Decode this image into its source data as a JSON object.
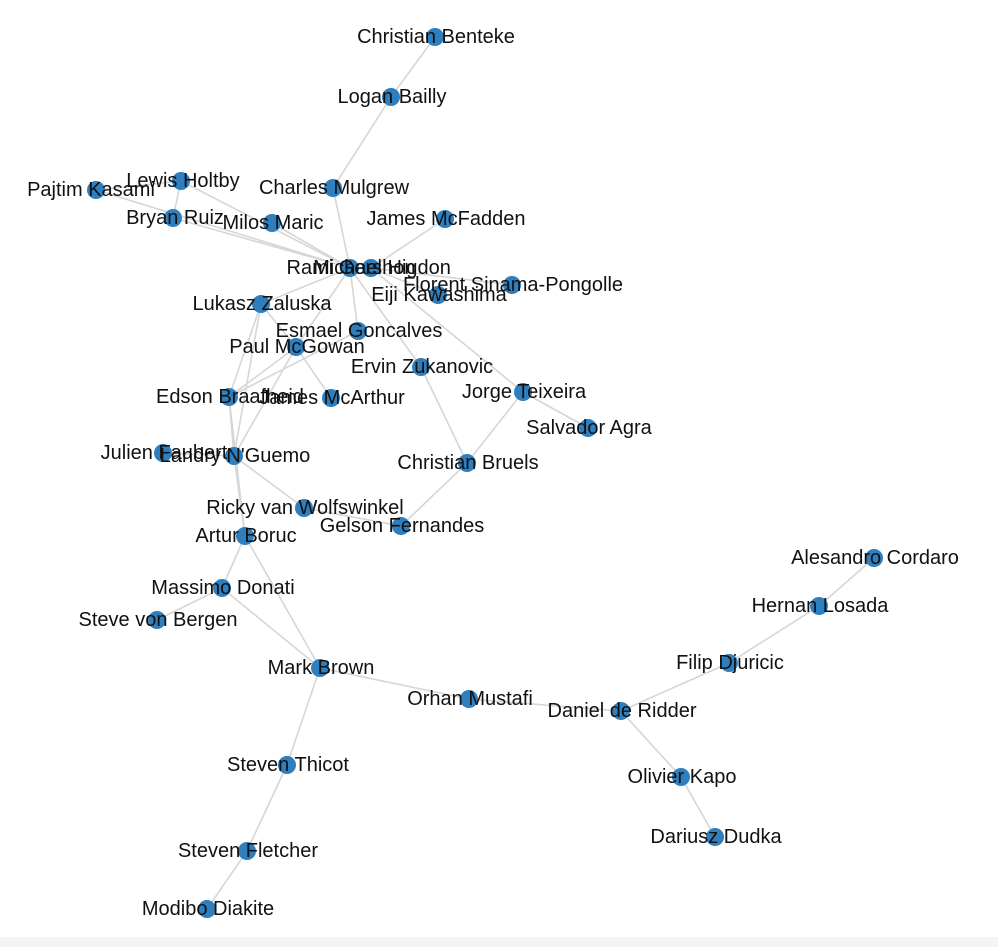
{
  "graph": {
    "node_color": "#2f7fbf",
    "edge_color": "#d6d6d6",
    "nodes": [
      {
        "id": "christian_benteke",
        "label": "Christian Benteke"
      },
      {
        "id": "logan_bailly",
        "label": "Logan Bailly"
      },
      {
        "id": "charles_mulgrew",
        "label": "Charles Mulgrew"
      },
      {
        "id": "lewis_holtby",
        "label": "Lewis Holtby"
      },
      {
        "id": "pajtim_kasami",
        "label": "Pajtim Kasami"
      },
      {
        "id": "bryan_ruiz",
        "label": "Bryan Ruiz"
      },
      {
        "id": "milos_maric",
        "label": "Milos Maric"
      },
      {
        "id": "james_mcfadden",
        "label": "James McFadden"
      },
      {
        "id": "rami_gershon",
        "label": "Rami Gershon"
      },
      {
        "id": "michael_higdon",
        "label": "Michael Higdon"
      },
      {
        "id": "florent_sinama_pongolle",
        "label": "Florent Sinama-Pongolle"
      },
      {
        "id": "eiji_kawashima",
        "label": "Eiji Kawashima"
      },
      {
        "id": "lukasz_zaluska",
        "label": "Lukasz Zaluska"
      },
      {
        "id": "esmael_goncalves",
        "label": "Esmael Goncalves"
      },
      {
        "id": "paul_mcgowan",
        "label": "Paul McGowan"
      },
      {
        "id": "ervin_zukanovic",
        "label": "Ervin Zukanovic"
      },
      {
        "id": "jorge_teixeira",
        "label": "Jorge Teixeira"
      },
      {
        "id": "salvador_agra",
        "label": "Salvador Agra"
      },
      {
        "id": "edson_braafheid",
        "label": "Edson Braafheid"
      },
      {
        "id": "james_mcarthur",
        "label": "James McArthur"
      },
      {
        "id": "julien_faubert",
        "label": "Julien Faubert"
      },
      {
        "id": "landry_nguemo",
        "label": "Landry N'Guemo"
      },
      {
        "id": "christian_bruels",
        "label": "Christian Bruels"
      },
      {
        "id": "ricky_van_wolfswinkel",
        "label": "Ricky van Wolfswinkel"
      },
      {
        "id": "gelson_fernandes",
        "label": "Gelson Fernandes"
      },
      {
        "id": "artur_boruc",
        "label": "Artur Boruc"
      },
      {
        "id": "massimo_donati",
        "label": "Massimo Donati"
      },
      {
        "id": "steve_von_bergen",
        "label": "Steve von Bergen"
      },
      {
        "id": "mark_brown",
        "label": "Mark Brown"
      },
      {
        "id": "orhan_mustafi",
        "label": "Orhan Mustafi"
      },
      {
        "id": "steven_thicot",
        "label": "Steven Thicot"
      },
      {
        "id": "steven_fletcher",
        "label": "Steven Fletcher"
      },
      {
        "id": "modibo_diakite",
        "label": "Modibo Diakite"
      },
      {
        "id": "alesandro_cordaro",
        "label": "Alesandro Cordaro"
      },
      {
        "id": "hernan_losada",
        "label": "Hernan Losada"
      },
      {
        "id": "filip_djuricic",
        "label": "Filip Djuricic"
      },
      {
        "id": "daniel_de_ridder",
        "label": "Daniel de Ridder"
      },
      {
        "id": "olivier_kapo",
        "label": "Olivier Kapo"
      },
      {
        "id": "dariusz_dudka",
        "label": "Dariusz Dudka"
      }
    ],
    "edges": [
      [
        "christian_benteke",
        "logan_bailly"
      ],
      [
        "logan_bailly",
        "charles_mulgrew"
      ],
      [
        "charles_mulgrew",
        "rami_gershon"
      ],
      [
        "lewis_holtby",
        "pajtim_kasami"
      ],
      [
        "lewis_holtby",
        "rami_gershon"
      ],
      [
        "lewis_holtby",
        "bryan_ruiz"
      ],
      [
        "pajtim_kasami",
        "rami_gershon"
      ],
      [
        "bryan_ruiz",
        "rami_gershon"
      ],
      [
        "milos_maric",
        "rami_gershon"
      ],
      [
        "james_mcfadden",
        "michael_higdon"
      ],
      [
        "rami_gershon",
        "michael_higdon"
      ],
      [
        "michael_higdon",
        "florent_sinama_pongolle"
      ],
      [
        "michael_higdon",
        "eiji_kawashima"
      ],
      [
        "rami_gershon",
        "lukasz_zaluska"
      ],
      [
        "rami_gershon",
        "esmael_goncalves"
      ],
      [
        "rami_gershon",
        "ervin_zukanovic"
      ],
      [
        "rami_gershon",
        "paul_mcgowan"
      ],
      [
        "michael_higdon",
        "jorge_teixeira"
      ],
      [
        "lukasz_zaluska",
        "edson_braafheid"
      ],
      [
        "lukasz_zaluska",
        "landry_nguemo"
      ],
      [
        "lukasz_zaluska",
        "paul_mcgowan"
      ],
      [
        "paul_mcgowan",
        "edson_braafheid"
      ],
      [
        "paul_mcgowan",
        "james_mcarthur"
      ],
      [
        "paul_mcgowan",
        "landry_nguemo"
      ],
      [
        "esmael_goncalves",
        "edson_braafheid"
      ],
      [
        "ervin_zukanovic",
        "christian_bruels"
      ],
      [
        "jorge_teixeira",
        "salvador_agra"
      ],
      [
        "jorge_teixeira",
        "christian_bruels"
      ],
      [
        "edson_braafheid",
        "landry_nguemo"
      ],
      [
        "edson_braafheid",
        "artur_boruc"
      ],
      [
        "julien_faubert",
        "landry_nguemo"
      ],
      [
        "landry_nguemo",
        "ricky_van_wolfswinkel"
      ],
      [
        "landry_nguemo",
        "artur_boruc"
      ],
      [
        "christian_bruels",
        "gelson_fernandes"
      ],
      [
        "ricky_van_wolfswinkel",
        "gelson_fernandes"
      ],
      [
        "artur_boruc",
        "massimo_donati"
      ],
      [
        "artur_boruc",
        "mark_brown"
      ],
      [
        "massimo_donati",
        "steve_von_bergen"
      ],
      [
        "massimo_donati",
        "mark_brown"
      ],
      [
        "mark_brown",
        "orhan_mustafi"
      ],
      [
        "mark_brown",
        "steven_thicot"
      ],
      [
        "steven_thicot",
        "steven_fletcher"
      ],
      [
        "steven_fletcher",
        "modibo_diakite"
      ],
      [
        "alesandro_cordaro",
        "hernan_losada"
      ],
      [
        "hernan_losada",
        "filip_djuricic"
      ],
      [
        "filip_djuricic",
        "daniel_de_ridder"
      ],
      [
        "orhan_mustafi",
        "daniel_de_ridder"
      ],
      [
        "daniel_de_ridder",
        "olivier_kapo"
      ],
      [
        "olivier_kapo",
        "dariusz_dudka"
      ]
    ]
  }
}
